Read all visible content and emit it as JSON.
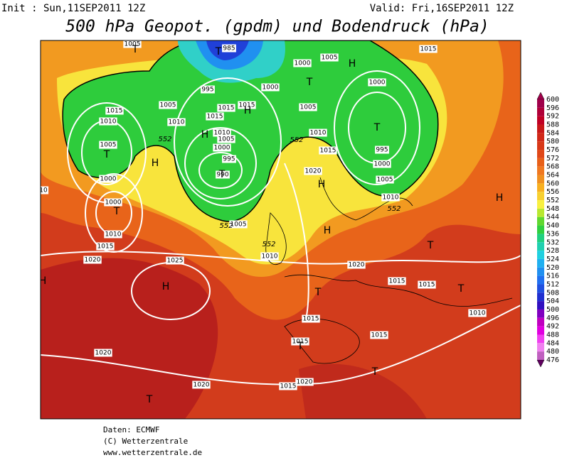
{
  "header": {
    "init": "Init : Sun,11SEP2011 12Z",
    "valid": "Valid: Fri,16SEP2011 12Z",
    "title": "500 hPa Geopot. (gpdm) und Bodendruck (hPa)"
  },
  "legend": {
    "levels": [
      "600",
      "596",
      "592",
      "588",
      "584",
      "580",
      "576",
      "572",
      "568",
      "564",
      "560",
      "556",
      "552",
      "548",
      "544",
      "540",
      "536",
      "532",
      "528",
      "524",
      "520",
      "516",
      "512",
      "508",
      "504",
      "500",
      "496",
      "492",
      "488",
      "484",
      "480",
      "476"
    ],
    "colors": [
      "#a0004a",
      "#b00038",
      "#c00024",
      "#c81818",
      "#d02818",
      "#d83818",
      "#e04818",
      "#e86018",
      "#f07820",
      "#f09020",
      "#f8b020",
      "#f8d030",
      "#f8f040",
      "#b8e830",
      "#60d830",
      "#30d040",
      "#20d080",
      "#20d0b0",
      "#20d0e0",
      "#20b0f0",
      "#2090f0",
      "#2070f0",
      "#2050e0",
      "#2030d0",
      "#3010c0",
      "#8000c0",
      "#c000c0",
      "#e000e0",
      "#f040f0",
      "#f080f0",
      "#c060c0",
      "#600060"
    ]
  },
  "map": {
    "isobar_labels": [
      "985",
      "1005",
      "1005",
      "1015",
      "1000",
      "1000",
      "995",
      "1005",
      "1015",
      "1015",
      "1005",
      "1015",
      "1010",
      "1010",
      "1015",
      "1010",
      "1005",
      "1000",
      "995",
      "990",
      "1005",
      "1000",
      "1000",
      "1010",
      "1015",
      "1020",
      "1025",
      "1010",
      "1015",
      "1020",
      "1000",
      "995",
      "1000",
      "1005",
      "1010",
      "1005",
      "1010",
      "1020",
      "1015",
      "1015",
      "1010",
      "1015",
      "1015",
      "1015",
      "1020",
      "1020",
      "1020",
      "1015",
      "10"
    ],
    "geopot_labels": [
      "552",
      "552",
      "552",
      "552",
      "552"
    ],
    "centers": [
      "T",
      "T",
      "H",
      "T",
      "H",
      "H",
      "T",
      "T",
      "H",
      "T",
      "H",
      "T",
      "H",
      "H",
      "T",
      "H",
      "H",
      "T",
      "T",
      "T",
      "T",
      "T"
    ]
  },
  "footer": {
    "source": "Daten: ECMWF",
    "copyright": "(C) Wetterzentrale",
    "url": "www.wetterzentrale.de"
  }
}
